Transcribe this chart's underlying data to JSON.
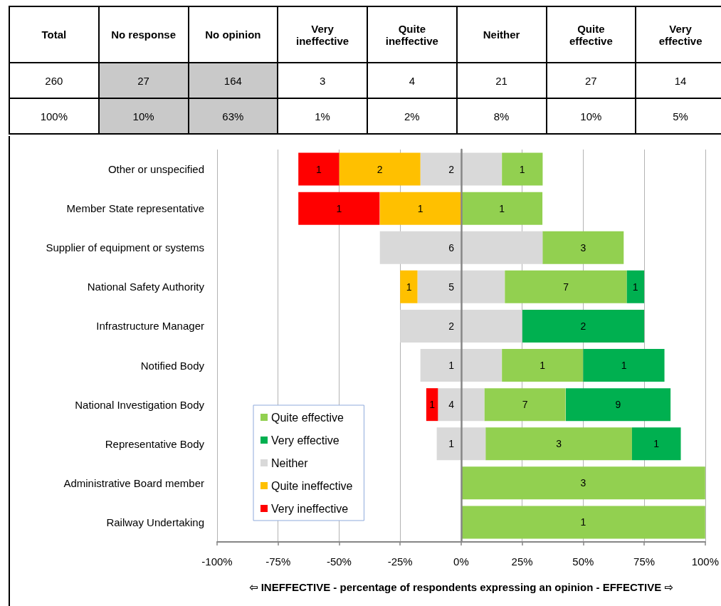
{
  "chart_data": [
    {
      "type": "other",
      "categories": [
        "Total",
        "No response",
        "No opinion",
        "Very ineffective",
        "Quite ineffective",
        "Neither",
        "Quite effective",
        "Very effective"
      ],
      "series": [
        {
          "values": [
            260,
            27,
            164,
            3,
            4,
            21,
            27,
            14
          ],
          "value_labels": [
            "260",
            "27",
            "164",
            "3",
            "4",
            "21",
            "27",
            "14"
          ],
          "colors": [
            "#ffffff",
            "#c9c9c9",
            "#c9c9c9",
            "#ffffff",
            "#ffffff",
            "#ffffff",
            "#ffffff",
            "#ffffff"
          ]
        },
        {
          "values": [
            100,
            10,
            63,
            1,
            2,
            8,
            10,
            5
          ],
          "value_labels": [
            "100%",
            "10%",
            "63%",
            "1%",
            "2%",
            "8%",
            "10%",
            "5%"
          ],
          "colors": [
            "#ffffff",
            "#c9c9c9",
            "#c9c9c9",
            "#ffffff",
            "#ffffff",
            "#ffffff",
            "#ffffff",
            "#ffffff"
          ]
        }
      ]
    },
    {
      "type": "bar",
      "orientation": "horizontal",
      "categories": [
        "Other or unspecified",
        "Member State representative",
        "Supplier of equipment or systems",
        "National Safety Authority",
        "Infrastructure Manager",
        "Notified Body",
        "National Investigation Body",
        "Representative Body",
        "Administrative Board member",
        "Railway Undertaking"
      ],
      "series": [
        {
          "name": "Quite effective",
          "color": "#92d050",
          "values": [
            16.7,
            33.3,
            33.3,
            50.0,
            null,
            33.3,
            33.3,
            60,
            100,
            100
          ],
          "base": [
            16.7,
            0,
            33.3,
            17.9,
            null,
            16.7,
            9.5,
            10,
            0,
            0
          ]
        },
        {
          "name": "Very effective",
          "color": "#00b050",
          "values": [
            null,
            null,
            null,
            7.1,
            50,
            33.3,
            42.9,
            20,
            null,
            null
          ],
          "base": [
            null,
            null,
            null,
            67.9,
            25,
            50,
            42.9,
            70,
            null,
            null
          ]
        },
        {
          "name": "Neither",
          "color": "#d9d9d9",
          "values": [
            33.3,
            null,
            66.7,
            35.7,
            50,
            33.3,
            19.0,
            20,
            null,
            null
          ],
          "base": [
            -16.7,
            null,
            -33.3,
            -17.9,
            -25,
            -16.7,
            -9.5,
            -10,
            null,
            null
          ]
        },
        {
          "name": "Quite ineffective",
          "color": "#ffc000",
          "values": [
            33.3,
            33.3,
            null,
            7.1,
            null,
            null,
            null,
            null,
            null,
            null
          ],
          "base": [
            -50,
            -33.3,
            null,
            -25,
            null,
            null,
            null,
            null,
            null,
            null
          ]
        },
        {
          "name": "Very ineffective",
          "color": "#ff0000",
          "values": [
            16.7,
            33.3,
            null,
            null,
            null,
            null,
            4.8,
            null,
            null,
            null
          ],
          "base": [
            -66.7,
            -66.7,
            null,
            null,
            null,
            null,
            -14.3,
            null,
            null,
            null
          ]
        }
      ],
      "annotations": [
        {
          "text": "1",
          "x": -58.3,
          "y": "Other or unspecified"
        },
        {
          "text": "2",
          "x": -33.3,
          "y": "Other or unspecified"
        },
        {
          "text": "2",
          "x": -4,
          "y": "Other or unspecified"
        },
        {
          "text": "1",
          "x": 25,
          "y": "Other or unspecified"
        },
        {
          "text": "1",
          "x": -50,
          "y": "Member State representative"
        },
        {
          "text": "1",
          "x": -16.7,
          "y": "Member State representative"
        },
        {
          "text": "1",
          "x": 16.7,
          "y": "Member State representative"
        },
        {
          "text": "6",
          "x": -4,
          "y": "Supplier of equipment or systems"
        },
        {
          "text": "3",
          "x": 50,
          "y": "Supplier of equipment or systems"
        },
        {
          "text": "1",
          "x": -21.4,
          "y": "National Safety Authority"
        },
        {
          "text": "5",
          "x": -4,
          "y": "National Safety Authority"
        },
        {
          "text": "7",
          "x": 42.9,
          "y": "National Safety Authority"
        },
        {
          "text": "1",
          "x": 71.4,
          "y": "National Safety Authority"
        },
        {
          "text": "2",
          "x": -4,
          "y": "Infrastructure Manager"
        },
        {
          "text": "2",
          "x": 50,
          "y": "Infrastructure Manager"
        },
        {
          "text": "1",
          "x": -4,
          "y": "Notified Body"
        },
        {
          "text": "1",
          "x": 33.3,
          "y": "Notified Body"
        },
        {
          "text": "1",
          "x": 66.7,
          "y": "Notified Body"
        },
        {
          "text": "1",
          "x": -11.9,
          "y": "National Investigation Body"
        },
        {
          "text": "4",
          "x": -4,
          "y": "National Investigation Body"
        },
        {
          "text": "7",
          "x": 26.2,
          "y": "National Investigation Body"
        },
        {
          "text": "9",
          "x": 64.3,
          "y": "National Investigation Body"
        },
        {
          "text": "1",
          "x": -4,
          "y": "Representative Body"
        },
        {
          "text": "3",
          "x": 40,
          "y": "Representative Body"
        },
        {
          "text": "1",
          "x": 80,
          "y": "Representative Body"
        },
        {
          "text": "3",
          "x": 50,
          "y": "Administrative Board member"
        },
        {
          "text": "1",
          "x": 50,
          "y": "Railway Undertaking"
        }
      ],
      "xlim": [
        -100,
        100
      ],
      "xticks": [
        {
          "value": -100,
          "label": "-100%"
        },
        {
          "value": -75,
          "label": "-75%"
        },
        {
          "value": -50,
          "label": "-50%"
        },
        {
          "value": -25,
          "label": "-25%"
        },
        {
          "value": 0,
          "label": "0%"
        },
        {
          "value": 25,
          "label": "25%"
        },
        {
          "value": 50,
          "label": "50%"
        },
        {
          "value": 75,
          "label": "75%"
        },
        {
          "value": 100,
          "label": "100%"
        }
      ],
      "xlabel": "⇦ INEFFECTIVE - percentage of respondents expressing an opinion - EFFECTIVE ⇨",
      "grid": "x",
      "legend": "bottom left"
    }
  ]
}
